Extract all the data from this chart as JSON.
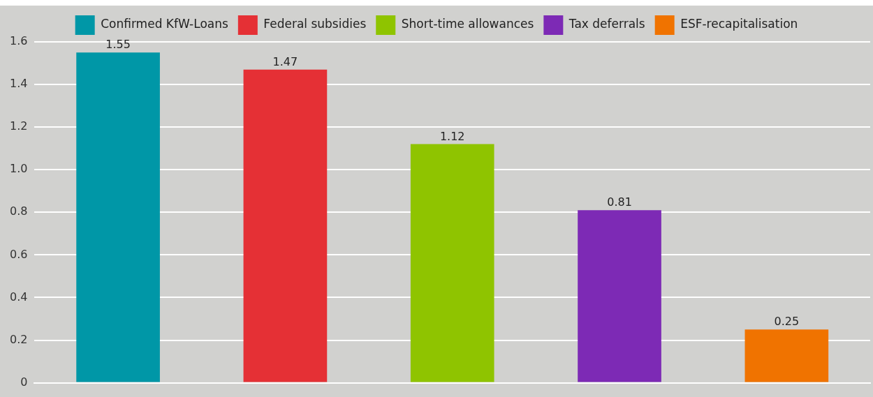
{
  "chart_data": {
    "type": "bar",
    "categories": [
      null,
      null,
      null,
      null,
      null
    ],
    "series": [
      {
        "name": "Confirmed KfW-Loans",
        "color": "#0097a7",
        "values": [
          1.55,
          null,
          null,
          null,
          null
        ]
      },
      {
        "name": "Federal subsidies",
        "color": "#e53035",
        "values": [
          null,
          1.47,
          null,
          null,
          null
        ]
      },
      {
        "name": "Short-time allowances",
        "color": "#8fc400",
        "values": [
          null,
          null,
          1.12,
          null,
          null
        ]
      },
      {
        "name": "Tax deferrals",
        "color": "#7d2ab5",
        "values": [
          null,
          null,
          null,
          0.81,
          null
        ]
      },
      {
        "name": "ESF-recapitalisation",
        "color": "#f07300",
        "values": [
          null,
          null,
          null,
          null,
          0.25
        ]
      }
    ],
    "ylim": [
      0,
      1.6
    ],
    "yticks": [
      0,
      {
        "value": 0.2,
        "label": "0.2"
      },
      {
        "value": 0.4,
        "label": "0.4"
      },
      {
        "value": 0.6,
        "label": "0.6"
      },
      {
        "value": 0.8,
        "label": "0.8"
      },
      {
        "value": 1,
        "label": "1.0"
      },
      {
        "value": 1.2,
        "label": "1.2"
      },
      {
        "value": 1.4,
        "label": "1.4"
      },
      {
        "value": 1.6,
        "label": "1.6"
      }
    ],
    "grid": "y",
    "legend": "top",
    "data_labels": true
  }
}
